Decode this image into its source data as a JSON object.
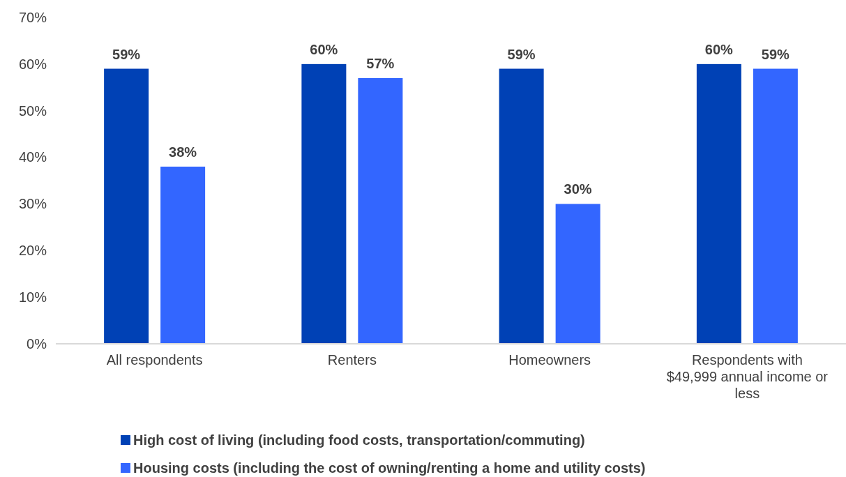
{
  "chart_data": {
    "type": "bar",
    "categories": [
      "All respondents",
      "Renters",
      "Homeowners",
      "Respondents with $49,999 annual income or less"
    ],
    "series": [
      {
        "name": "High cost of living (including food costs, transportation/commuting)",
        "color": "#0041b5",
        "values": [
          59,
          60,
          59,
          60
        ],
        "value_labels": [
          "59%",
          "60%",
          "59%",
          "60%"
        ]
      },
      {
        "name": "Housing costs (including the cost of owning/renting a home and utility costs)",
        "color": "#3366ff",
        "values": [
          38,
          57,
          30,
          59
        ],
        "value_labels": [
          "38%",
          "57%",
          "30%",
          "59%"
        ]
      }
    ],
    "ylim": [
      0,
      70
    ],
    "yticks": [
      {
        "value": 0,
        "label": "0%"
      },
      {
        "value": 10,
        "label": "10%"
      },
      {
        "value": 20,
        "label": "20%"
      },
      {
        "value": 30,
        "label": "30%"
      },
      {
        "value": 40,
        "label": "40%"
      },
      {
        "value": 50,
        "label": "50%"
      },
      {
        "value": 60,
        "label": "60%"
      },
      {
        "value": 70,
        "label": "70%"
      }
    ],
    "grid": false,
    "legend": "bottom"
  }
}
